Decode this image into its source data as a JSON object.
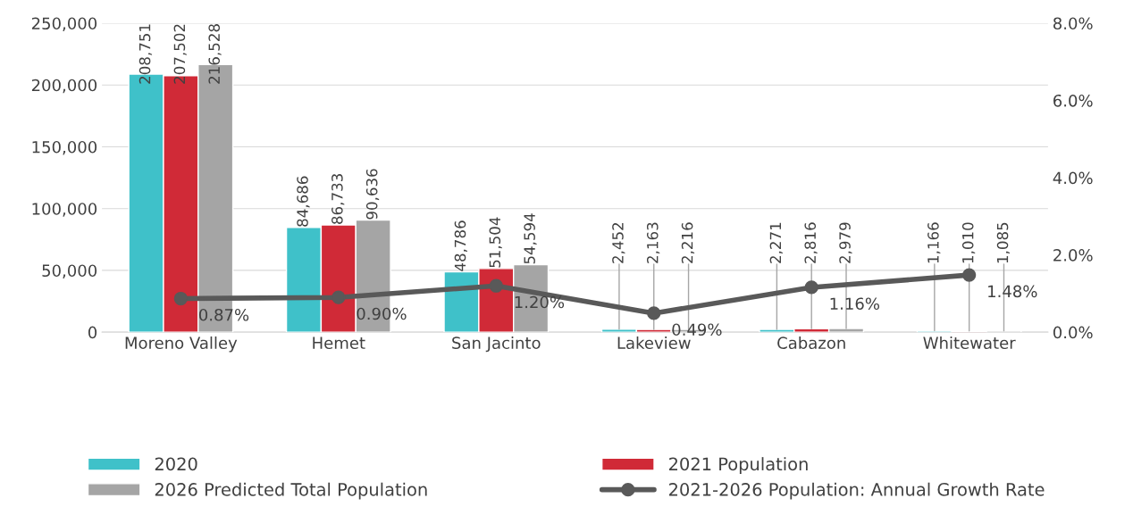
{
  "chart_data": {
    "type": "bar",
    "categories": [
      "Moreno Valley",
      "Hemet",
      "San Jacinto",
      "Lakeview",
      "Cabazon",
      "Whitewater"
    ],
    "series": [
      {
        "name": "2020",
        "color": "#3fc1c9",
        "values": [
          208751,
          84686,
          48786,
          2452,
          2271,
          1166
        ],
        "value_labels": [
          "208,751",
          "84,686",
          "48,786",
          "2,452",
          "2,271",
          "1,166"
        ]
      },
      {
        "name": "2021 Population",
        "color": "#d02a37",
        "values": [
          207502,
          86733,
          51504,
          2163,
          2816,
          1010
        ],
        "value_labels": [
          "207,502",
          "86,733",
          "51,504",
          "2,163",
          "2,816",
          "1,010"
        ]
      },
      {
        "name": "2026 Predicted Total Population",
        "color": "#a5a5a5",
        "values": [
          216528,
          90636,
          54594,
          2216,
          2979,
          1085
        ],
        "value_labels": [
          "216,528",
          "90,636",
          "54,594",
          "2,216",
          "2,979",
          "1,085"
        ]
      },
      {
        "name": "2021-2026 Population: Annual Growth Rate",
        "type": "line",
        "axis": "y2",
        "color": "#595959",
        "marker": "circle",
        "values": [
          0.87,
          0.9,
          1.2,
          0.49,
          1.16,
          1.48
        ],
        "value_labels": [
          "0.87%",
          "0.90%",
          "1.20%",
          "0.49%",
          "1.16%",
          "1.48%"
        ]
      }
    ],
    "ylim": [
      0,
      250000
    ],
    "yticks": [
      0,
      {
        "value": 50000,
        "label": "50,000"
      },
      {
        "value": 100000,
        "label": "100,000"
      },
      {
        "value": 150000,
        "label": "150,000"
      },
      {
        "value": 200000,
        "label": "200,000"
      },
      {
        "value": 250000,
        "label": "250,000"
      }
    ],
    "y2lim": [
      0,
      8
    ],
    "y2ticks": [
      {
        "value": 0,
        "label": "0.0%"
      },
      {
        "value": 2,
        "label": "2.0%"
      },
      {
        "value": 4,
        "label": "4.0%"
      },
      {
        "value": 6,
        "label": "6.0%"
      },
      {
        "value": 8,
        "label": "8.0%"
      }
    ],
    "grid": "y",
    "legend": "bottom"
  }
}
